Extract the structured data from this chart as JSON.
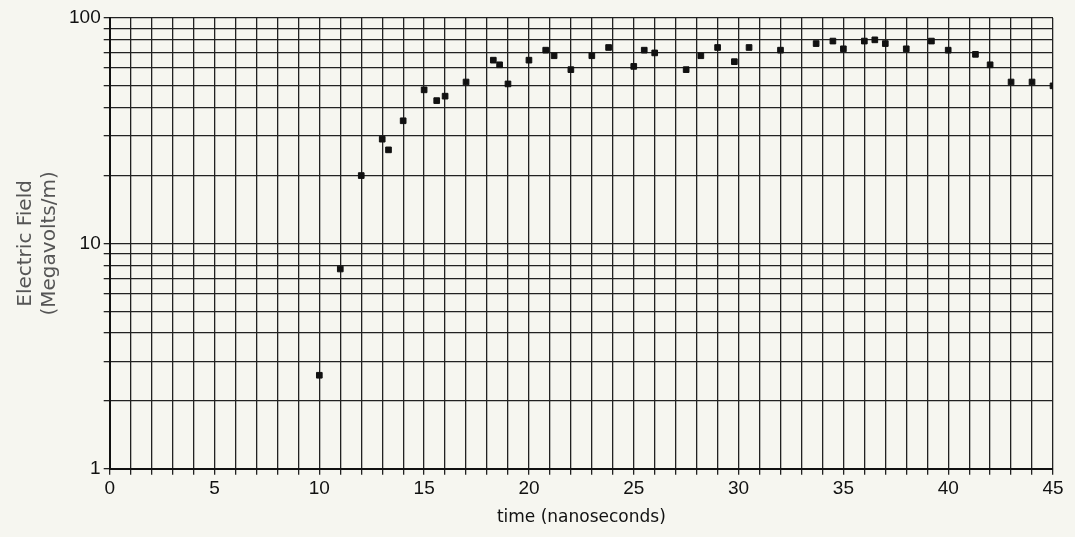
{
  "chart_data": {
    "type": "scatter",
    "xlabel": "time (nanoseconds)",
    "ylabel": "Electric Field\n(Megavolts/m)",
    "x": [
      10,
      11,
      12,
      13,
      13.3,
      14,
      15,
      15.6,
      16,
      17,
      18.3,
      18.6,
      19,
      20,
      20.8,
      21.2,
      22,
      23,
      23.8,
      25,
      25.5,
      26,
      27.5,
      28.2,
      29,
      29.8,
      30.5,
      32,
      33.7,
      34.5,
      35,
      36,
      36.5,
      37,
      38,
      39.2,
      40,
      41.3,
      42,
      43,
      44,
      45
    ],
    "series": [
      {
        "color": "#111111",
        "values": [
          2.6,
          7.7,
          20,
          29,
          26,
          35,
          48,
          43,
          45,
          52,
          65,
          62,
          51,
          65,
          72,
          68,
          59,
          68,
          74,
          61,
          72,
          70,
          59,
          68,
          74,
          64,
          74,
          72,
          77,
          79,
          73,
          79,
          80,
          77,
          73,
          79,
          72,
          69,
          62,
          52,
          52,
          50
        ]
      }
    ],
    "xlim": [
      0,
      45
    ],
    "xticks": [
      0,
      {
        "value": 1,
        "label": null
      },
      {
        "value": 2,
        "label": null
      },
      {
        "value": 3,
        "label": null
      },
      {
        "value": 4,
        "label": null
      },
      5,
      {
        "value": 6,
        "label": null
      },
      {
        "value": 7,
        "label": null
      },
      {
        "value": 8,
        "label": null
      },
      {
        "value": 9,
        "label": null
      },
      10,
      {
        "value": 11,
        "label": null
      },
      {
        "value": 12,
        "label": null
      },
      {
        "value": 13,
        "label": null
      },
      {
        "value": 14,
        "label": null
      },
      15,
      {
        "value": 16,
        "label": null
      },
      {
        "value": 17,
        "label": null
      },
      {
        "value": 18,
        "label": null
      },
      {
        "value": 19,
        "label": null
      },
      20,
      {
        "value": 21,
        "label": null
      },
      {
        "value": 22,
        "label": null
      },
      {
        "value": 23,
        "label": null
      },
      {
        "value": 24,
        "label": null
      },
      25,
      {
        "value": 26,
        "label": null
      },
      {
        "value": 27,
        "label": null
      },
      {
        "value": 28,
        "label": null
      },
      {
        "value": 29,
        "label": null
      },
      30,
      {
        "value": 31,
        "label": null
      },
      {
        "value": 32,
        "label": null
      },
      {
        "value": 33,
        "label": null
      },
      {
        "value": 34,
        "label": null
      },
      35,
      {
        "value": 36,
        "label": null
      },
      {
        "value": 37,
        "label": null
      },
      {
        "value": 38,
        "label": null
      },
      {
        "value": 39,
        "label": null
      },
      40,
      {
        "value": 41,
        "label": null
      },
      {
        "value": 42,
        "label": null
      },
      {
        "value": 43,
        "label": null
      },
      {
        "value": 44,
        "label": null
      },
      45
    ],
    "ylim": [
      1,
      100
    ],
    "yticks": [
      1,
      {
        "value": 2,
        "label": null
      },
      {
        "value": 3,
        "label": null
      },
      {
        "value": 4,
        "label": null
      },
      {
        "value": 5,
        "label": null
      },
      {
        "value": 6,
        "label": null
      },
      {
        "value": 7,
        "label": null
      },
      {
        "value": 8,
        "label": null
      },
      {
        "value": 9,
        "label": null
      },
      10,
      {
        "value": 20,
        "label": null
      },
      {
        "value": 30,
        "label": null
      },
      {
        "value": 40,
        "label": null
      },
      {
        "value": 50,
        "label": null
      },
      {
        "value": 60,
        "label": null
      },
      {
        "value": 70,
        "label": null
      },
      {
        "value": 80,
        "label": null
      },
      {
        "value": 90,
        "label": null
      },
      100
    ],
    "log": "y",
    "grid": true,
    "legend": false,
    "marker": "square"
  }
}
